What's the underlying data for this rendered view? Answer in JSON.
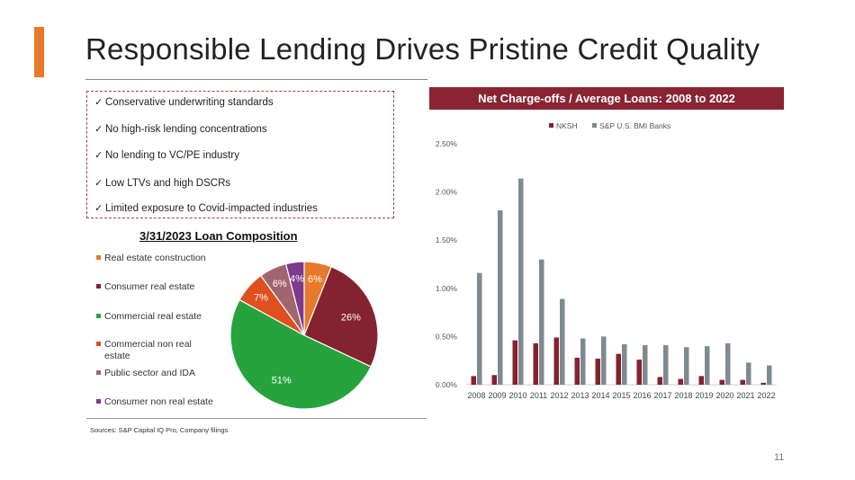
{
  "slide": {
    "title": "Responsible Lending Drives Pristine Credit Quality",
    "page_number": "11",
    "sources": "Sources: S&P Capital IQ Pro, Company filings",
    "bullets": [
      "Conservative underwriting standards",
      "No high-risk lending concentrations",
      "No lending to VC/PE industry",
      "Low LTVs and high DSCRs",
      "Limited exposure to Covid-impacted industries"
    ],
    "check_glyph": "✓",
    "accent_color": "#e8792a",
    "brand_color": "#8a2432"
  },
  "chart_data": [
    {
      "type": "pie",
      "title": "3/31/2023 Loan Composition",
      "legend_position": "left",
      "slices": [
        {
          "label": "Real estate construction",
          "value": 6,
          "display": "6%",
          "color": "#e8792a"
        },
        {
          "label": "Consumer real estate",
          "value": 26,
          "display": "26%",
          "color": "#84222f"
        },
        {
          "label": "Commercial real estate",
          "value": 51,
          "display": "51%",
          "color": "#27a33e"
        },
        {
          "label": "Commercial non real estate",
          "value": 7,
          "display": "7%",
          "color": "#e04f1e"
        },
        {
          "label": "Public sector and IDA",
          "value": 6,
          "display": "6%",
          "color": "#a16570"
        },
        {
          "label": "Consumer non real estate",
          "value": 4,
          "display": "4%",
          "color": "#7d3b8c"
        }
      ]
    },
    {
      "type": "bar",
      "title": "Net Charge-offs / Average Loans: 2008 to 2022",
      "legend_position": "top",
      "categories": [
        "2008",
        "2009",
        "2010",
        "2011",
        "2012",
        "2013",
        "2014",
        "2015",
        "2016",
        "2017",
        "2018",
        "2019",
        "2020",
        "2021",
        "2022"
      ],
      "series": [
        {
          "name": "NKSH",
          "color": "#84222f",
          "values": [
            0.09,
            0.1,
            0.46,
            0.43,
            0.49,
            0.28,
            0.27,
            0.32,
            0.26,
            0.08,
            0.06,
            0.09,
            0.05,
            0.05,
            0.02
          ]
        },
        {
          "name": "S&P U.S. BMI Banks",
          "color": "#7f8a90",
          "values": [
            1.16,
            1.81,
            2.14,
            1.3,
            0.89,
            0.48,
            0.5,
            0.42,
            0.41,
            0.41,
            0.39,
            0.4,
            0.43,
            0.23,
            0.2
          ]
        }
      ],
      "ylim": [
        0,
        2.5
      ],
      "yticks": [
        "0.00%",
        "0.50%",
        "1.00%",
        "1.50%",
        "2.00%",
        "2.50%"
      ],
      "grid": false
    }
  ]
}
